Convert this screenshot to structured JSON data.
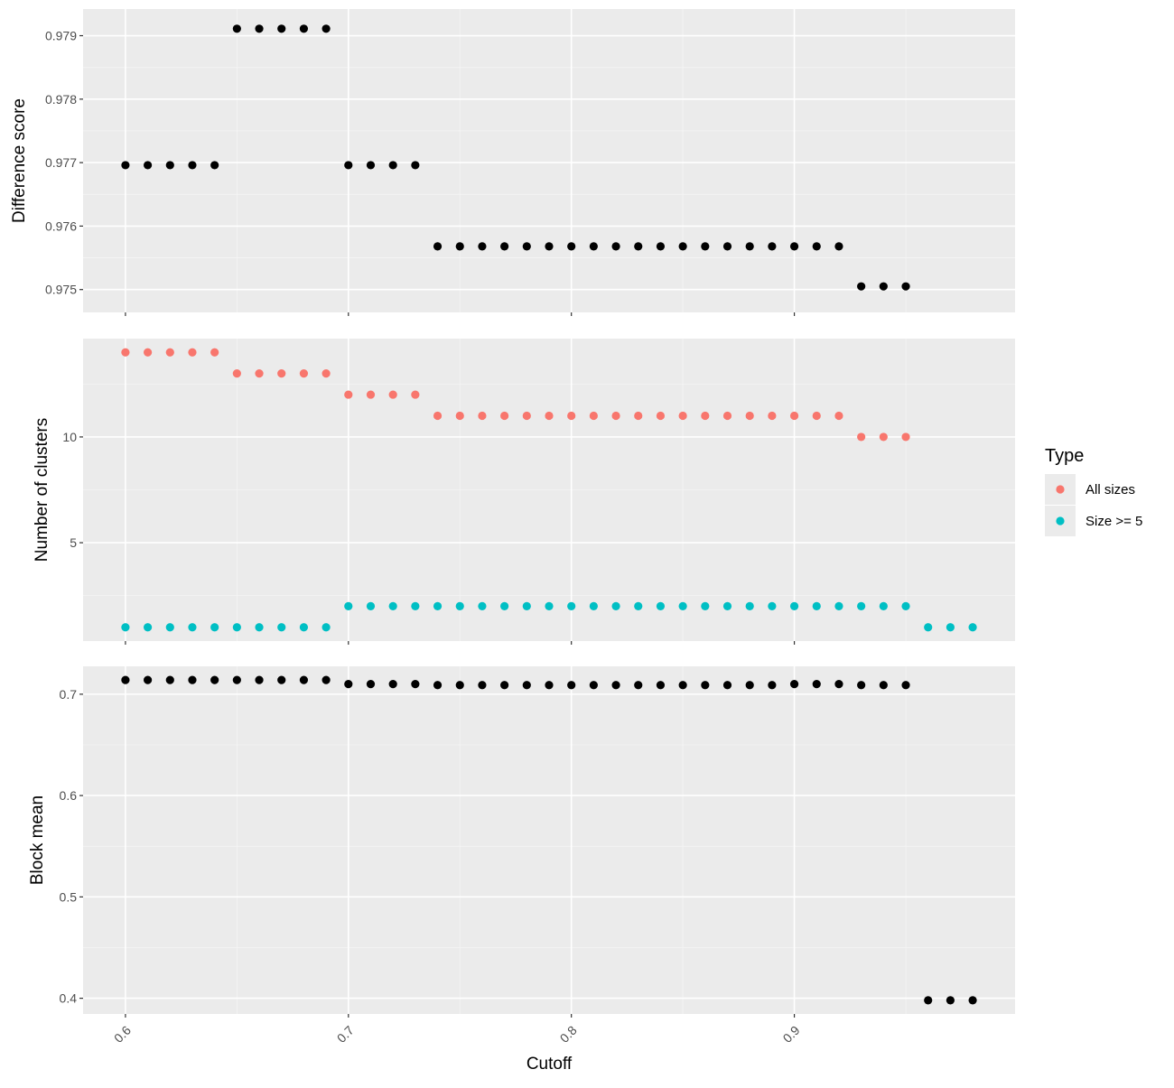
{
  "chart_data": {
    "type": "scatter",
    "xlabel": "Cutoff",
    "xlim": [
      0.581,
      0.999
    ],
    "x_ticks": [
      "0.6",
      "0.7",
      "0.8",
      "0.9"
    ],
    "x_tick_values": [
      0.6,
      0.7,
      0.8,
      0.9
    ],
    "legend": {
      "title": "Type",
      "position": "right",
      "entries": [
        {
          "label": "All sizes",
          "color": "#F8766D"
        },
        {
          "label": "Size >= 5",
          "color": "#00BFC4"
        }
      ]
    },
    "panels": [
      {
        "ylabel": "Difference score",
        "ylim": [
          0.97464,
          0.97942
        ],
        "y_ticks": [
          "0.975",
          "0.976",
          "0.977",
          "0.978",
          "0.979"
        ],
        "y_tick_values": [
          0.975,
          0.976,
          0.977,
          0.978,
          0.979
        ],
        "series": [
          {
            "color": "#000000",
            "x": [
              0.6,
              0.61,
              0.62,
              0.63,
              0.64,
              0.65,
              0.66,
              0.67,
              0.68,
              0.69,
              0.7,
              0.71,
              0.72,
              0.73,
              0.74,
              0.75,
              0.76,
              0.77,
              0.78,
              0.79,
              0.8,
              0.81,
              0.82,
              0.83,
              0.84,
              0.85,
              0.86,
              0.87,
              0.88,
              0.89,
              0.9,
              0.91,
              0.92,
              0.93,
              0.94,
              0.95
            ],
            "y": [
              0.97696,
              0.97696,
              0.97696,
              0.97696,
              0.97696,
              0.97911,
              0.97911,
              0.97911,
              0.97911,
              0.97911,
              0.97696,
              0.97696,
              0.97696,
              0.97696,
              0.97568,
              0.97568,
              0.97568,
              0.97568,
              0.97568,
              0.97568,
              0.97568,
              0.97568,
              0.97568,
              0.97568,
              0.97568,
              0.97568,
              0.97568,
              0.97568,
              0.97568,
              0.97568,
              0.97568,
              0.97568,
              0.97568,
              0.97505,
              0.97505,
              0.97505
            ]
          }
        ]
      },
      {
        "ylabel": "Number of clusters",
        "ylim": [
          0.35,
          14.65
        ],
        "y_ticks": [
          "5",
          "10"
        ],
        "y_tick_values": [
          5,
          10
        ],
        "series": [
          {
            "name": "All sizes",
            "color": "#F8766D",
            "x": [
              0.6,
              0.61,
              0.62,
              0.63,
              0.64,
              0.65,
              0.66,
              0.67,
              0.68,
              0.69,
              0.7,
              0.71,
              0.72,
              0.73,
              0.74,
              0.75,
              0.76,
              0.77,
              0.78,
              0.79,
              0.8,
              0.81,
              0.82,
              0.83,
              0.84,
              0.85,
              0.86,
              0.87,
              0.88,
              0.89,
              0.9,
              0.91,
              0.92,
              0.93,
              0.94,
              0.95
            ],
            "y": [
              14,
              14,
              14,
              14,
              14,
              13,
              13,
              13,
              13,
              13,
              12,
              12,
              12,
              12,
              11,
              11,
              11,
              11,
              11,
              11,
              11,
              11,
              11,
              11,
              11,
              11,
              11,
              11,
              11,
              11,
              11,
              11,
              11,
              10,
              10,
              10
            ]
          },
          {
            "name": "Size >= 5",
            "color": "#00BFC4",
            "x": [
              0.6,
              0.61,
              0.62,
              0.63,
              0.64,
              0.65,
              0.66,
              0.67,
              0.68,
              0.69,
              0.7,
              0.71,
              0.72,
              0.73,
              0.74,
              0.75,
              0.76,
              0.77,
              0.78,
              0.79,
              0.8,
              0.81,
              0.82,
              0.83,
              0.84,
              0.85,
              0.86,
              0.87,
              0.88,
              0.89,
              0.9,
              0.91,
              0.92,
              0.93,
              0.94,
              0.95,
              0.96,
              0.97,
              0.98
            ],
            "y": [
              1,
              1,
              1,
              1,
              1,
              1,
              1,
              1,
              1,
              1,
              2,
              2,
              2,
              2,
              2,
              2,
              2,
              2,
              2,
              2,
              2,
              2,
              2,
              2,
              2,
              2,
              2,
              2,
              2,
              2,
              2,
              2,
              2,
              2,
              2,
              2,
              1,
              1,
              1
            ]
          }
        ]
      },
      {
        "ylabel": "Block mean",
        "ylim": [
          0.3845,
          0.7275
        ],
        "y_ticks": [
          "0.4",
          "0.5",
          "0.6",
          "0.7"
        ],
        "y_tick_values": [
          0.4,
          0.5,
          0.6,
          0.7
        ],
        "series": [
          {
            "color": "#000000",
            "x": [
              0.6,
              0.61,
              0.62,
              0.63,
              0.64,
              0.65,
              0.66,
              0.67,
              0.68,
              0.69,
              0.7,
              0.71,
              0.72,
              0.73,
              0.74,
              0.75,
              0.76,
              0.77,
              0.78,
              0.79,
              0.8,
              0.81,
              0.82,
              0.83,
              0.84,
              0.85,
              0.86,
              0.87,
              0.88,
              0.89,
              0.9,
              0.91,
              0.92,
              0.93,
              0.94,
              0.95,
              0.96,
              0.97,
              0.98
            ],
            "y": [
              0.714,
              0.714,
              0.714,
              0.714,
              0.714,
              0.714,
              0.714,
              0.714,
              0.714,
              0.714,
              0.71,
              0.71,
              0.71,
              0.71,
              0.709,
              0.709,
              0.709,
              0.709,
              0.709,
              0.709,
              0.709,
              0.709,
              0.709,
              0.709,
              0.709,
              0.709,
              0.709,
              0.709,
              0.709,
              0.709,
              0.71,
              0.71,
              0.71,
              0.709,
              0.709,
              0.709,
              0.398,
              0.398,
              0.398
            ]
          }
        ]
      }
    ]
  }
}
